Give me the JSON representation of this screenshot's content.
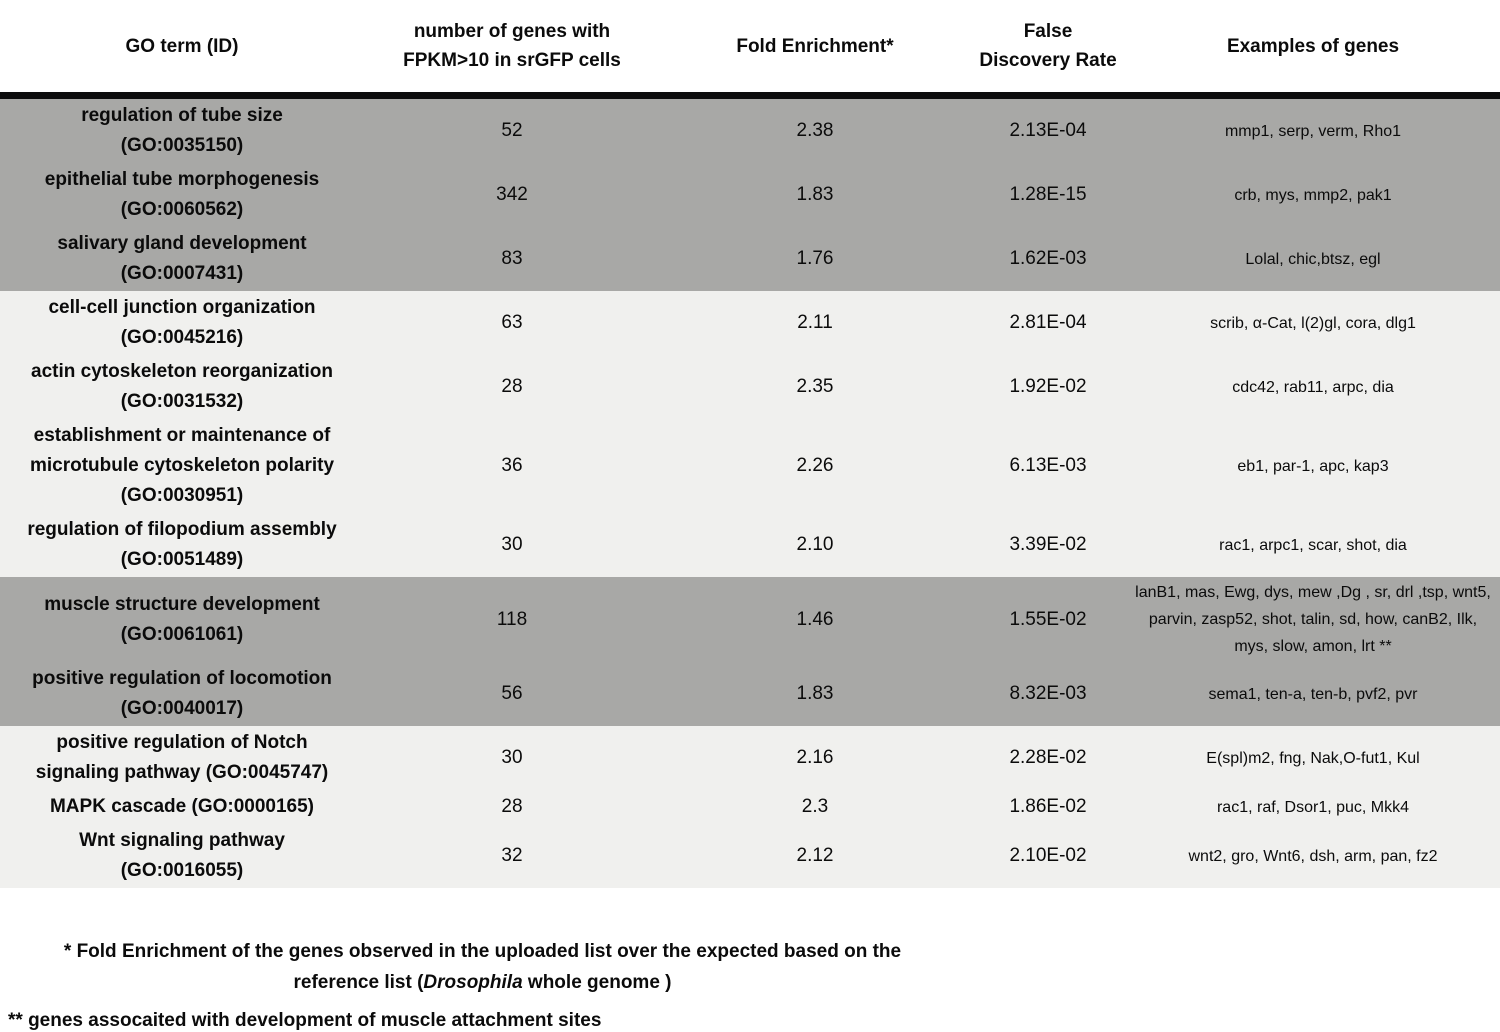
{
  "colors": {
    "shade_gray": "#a8a8a6",
    "shade_light": "#f0f0ee",
    "header_rule": "#0d0d0d",
    "text": "#0b0b0b"
  },
  "table": {
    "headers": [
      {
        "key": "go-term",
        "lines": [
          "GO term (ID)"
        ]
      },
      {
        "key": "gene-count",
        "lines": [
          "number of genes with",
          "FPKM>10 in srGFP cells"
        ]
      },
      {
        "key": "fold-enrichment",
        "lines": [
          "Fold Enrichment*"
        ]
      },
      {
        "key": "false-discovery-rate",
        "lines": [
          "False",
          "Discovery Rate"
        ]
      },
      {
        "key": "examples-of-genes",
        "lines": [
          "Examples of genes"
        ]
      }
    ],
    "rows": [
      {
        "term_lines": [
          "regulation of tube size",
          "(GO:0035150)"
        ],
        "count": "52",
        "fold": "2.38",
        "fdr": "2.13E-04",
        "examples": "mmp1, serp, verm, Rho1",
        "shade": "gray"
      },
      {
        "term_lines": [
          "epithelial tube morphogenesis",
          "(GO:0060562)"
        ],
        "count": "342",
        "fold": "1.83",
        "fdr": "1.28E-15",
        "examples": "crb, mys, mmp2, pak1",
        "shade": "gray"
      },
      {
        "term_lines": [
          "salivary gland development",
          "(GO:0007431)"
        ],
        "count": "83",
        "fold": "1.76",
        "fdr": "1.62E-03",
        "examples": "Lolal, chic,btsz, egl",
        "shade": "gray"
      },
      {
        "term_lines": [
          "cell-cell junction organization",
          "(GO:0045216)"
        ],
        "count": "63",
        "fold": "2.11",
        "fdr": "2.81E-04",
        "examples": "scrib, α-Cat, l(2)gl, cora, dlg1",
        "shade": "light"
      },
      {
        "term_lines": [
          "actin cytoskeleton reorganization",
          "(GO:0031532)"
        ],
        "count": "28",
        "fold": "2.35",
        "fdr": "1.92E-02",
        "examples": "cdc42, rab11, arpc, dia",
        "shade": "light"
      },
      {
        "term_lines": [
          "establishment or maintenance of",
          "microtubule cytoskeleton polarity",
          "(GO:0030951)"
        ],
        "count": "36",
        "fold": "2.26",
        "fdr": "6.13E-03",
        "examples": "eb1, par-1, apc, kap3",
        "shade": "light"
      },
      {
        "term_lines": [
          "regulation of filopodium assembly",
          "(GO:0051489)"
        ],
        "count": "30",
        "fold": "2.10",
        "fdr": "3.39E-02",
        "examples": "rac1, arpc1, scar, shot, dia",
        "shade": "light"
      },
      {
        "term_lines": [
          "muscle structure development",
          "(GO:0061061)"
        ],
        "count": "118",
        "fold": "1.46",
        "fdr": "1.55E-02",
        "examples": "lanB1, mas, Ewg, dys, mew ,Dg , sr, drl ,tsp, wnt5, parvin, zasp52, shot, talin, sd, how, canB2, Ilk, mys, slow, amon, lrt **",
        "shade": "gray"
      },
      {
        "term_lines": [
          "positive regulation of locomotion",
          "(GO:0040017)"
        ],
        "count": "56",
        "fold": "1.83",
        "fdr": "8.32E-03",
        "examples": "sema1, ten-a, ten-b, pvf2, pvr",
        "shade": "gray"
      },
      {
        "term_lines": [
          "positive regulation of Notch",
          "signaling pathway (GO:0045747)"
        ],
        "count": "30",
        "fold": "2.16",
        "fdr": "2.28E-02",
        "examples": "E(spl)m2, fng, Nak,O-fut1, Kul",
        "shade": "light"
      },
      {
        "term_lines": [
          "MAPK cascade (GO:0000165)"
        ],
        "count": "28",
        "fold": "2.3",
        "fdr": "1.86E-02",
        "examples": "rac1, raf, Dsor1, puc, Mkk4",
        "shade": "light"
      },
      {
        "term_lines": [
          "Wnt signaling pathway",
          "(GO:0016055)"
        ],
        "count": "32",
        "fold": "2.12",
        "fdr": "2.10E-02",
        "examples": "wnt2, gro, Wnt6, dsh, arm, pan, fz2",
        "shade": "light"
      }
    ]
  },
  "footnotes": {
    "fn1_line1": "* Fold Enrichment of the genes observed in the uploaded list over the expected based on the",
    "fn1_line2_prefix": "reference list (",
    "fn1_line2_italic": "Drosophila",
    "fn1_line2_suffix": " whole genome )",
    "fn2": "** genes assocaited with development of muscle attachment sites"
  }
}
